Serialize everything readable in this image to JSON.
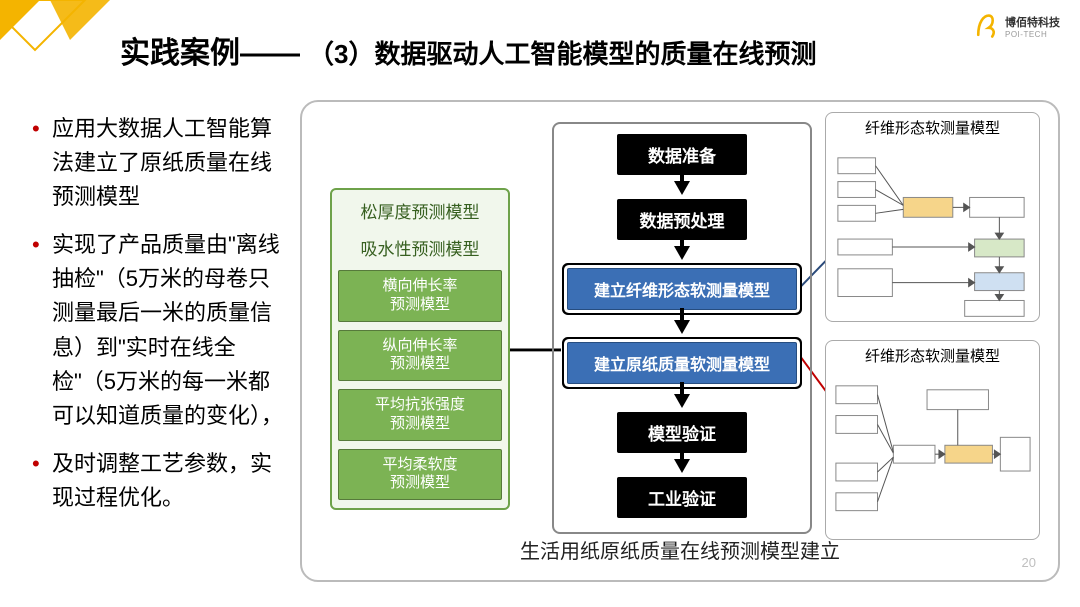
{
  "title": {
    "main": "实践案例——",
    "sub": "（3）数据驱动人工智能模型的质量在线预测"
  },
  "logo_text": "博佰特科技",
  "logo_sub": "POI-TECH",
  "bullets": [
    "应用大数据人工智能算法建立了原纸质量在线预测模型",
    "实现了产品质量由\"离线抽检\"（5万米的母卷只测量最后一米的质量信息）到\"实时在线全检\"（5万米的每一米都可以知道质量的变化），",
    "及时调整工艺参数，实现过程优化。"
  ],
  "caption": "生活用纸原纸质量在线预测模型建立",
  "page_number": "20",
  "green": {
    "light": [
      "松厚度预测模型",
      "吸水性预测模型"
    ],
    "solid": [
      "横向伸长率\n预测模型",
      "纵向伸长率\n预测模型",
      "平均抗张强度\n预测模型",
      "平均柔软度\n预测模型"
    ]
  },
  "flow": [
    {
      "label": "数据准备",
      "style": "black"
    },
    {
      "label": "数据预处理",
      "style": "black"
    },
    {
      "label": "建立纤维形态软测量模型",
      "style": "blue"
    },
    {
      "label": "建立原纸质量软测量模型",
      "style": "blue"
    },
    {
      "label": "模型验证",
      "style": "black"
    },
    {
      "label": "工业验证",
      "style": "black"
    }
  ],
  "mini_titles": {
    "top": "纤维形态软测量模型",
    "bot": "纤维形态软测量模型"
  },
  "colors": {
    "accent_red": "#c00000",
    "green_fill": "#7cb354",
    "green_border": "#6ea24a",
    "blue_fill": "#3b6fb5",
    "corner_yellow": "#f4b400",
    "connector_black": "#000000",
    "connector_red": "#c00000"
  }
}
